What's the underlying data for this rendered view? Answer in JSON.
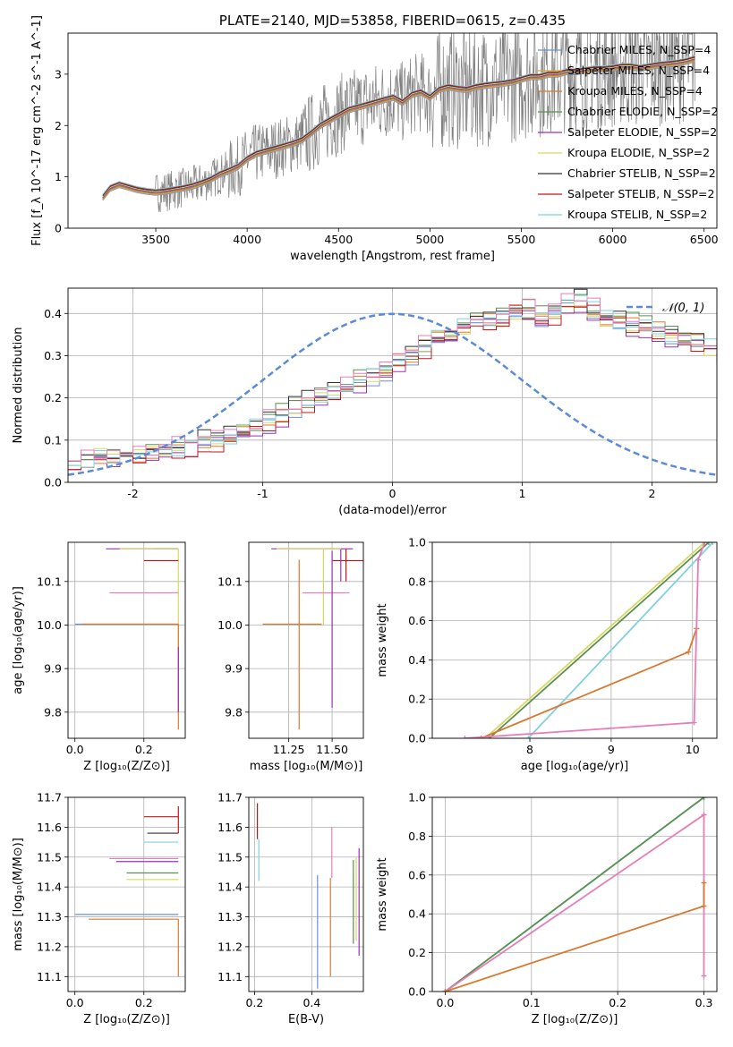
{
  "chart_data": [
    {
      "type": "line",
      "title": "PLATE=2140, MJD=53858, FIBERID=0615, z=0.435",
      "xlabel": "wavelength [Angstrom, rest frame]",
      "ylabel": "Flux [f_λ 10^-17 erg cm^-2 s^-1 A^-1]",
      "xlim": [
        3020,
        6570
      ],
      "ylim": [
        0,
        3.8
      ],
      "xticks": [
        3500,
        4000,
        4500,
        5000,
        5500,
        6000,
        6500
      ],
      "yticks": [
        0,
        1,
        2,
        3
      ],
      "grid": false,
      "legend_position": "top-right",
      "series": [
        {
          "name": "Chabrier MILES, N_SSP=4",
          "color": "#6a8fd8"
        },
        {
          "name": "Salpeter MILES, N_SSP=4",
          "color": "#e8a033"
        },
        {
          "name": "Kroupa MILES, N_SSP=4",
          "color": "#d9782f"
        },
        {
          "name": "Chabrier ELODIE, N_SSP=2",
          "color": "#5a9050"
        },
        {
          "name": "Salpeter ELODIE, N_SSP=2",
          "color": "#9b30b8"
        },
        {
          "name": "Kroupa ELODIE, N_SSP=2",
          "color": "#d8d860"
        },
        {
          "name": "Chabrier STELIB, N_SSP=2",
          "color": "#303030"
        },
        {
          "name": "Salpeter STELIB, N_SSP=2",
          "color": "#c01818"
        },
        {
          "name": "Kroupa STELIB, N_SSP=2",
          "color": "#80d0e0"
        }
      ],
      "data_color": "#808080",
      "model_x": [
        3210,
        3250,
        3300,
        3350,
        3400,
        3450,
        3500,
        3550,
        3600,
        3650,
        3700,
        3750,
        3800,
        3850,
        3900,
        3950,
        4000,
        4050,
        4100,
        4150,
        4200,
        4250,
        4300,
        4350,
        4400,
        4450,
        4500,
        4550,
        4600,
        4650,
        4700,
        4750,
        4800,
        4850,
        4900,
        4950,
        5000,
        5050,
        5100,
        5150,
        5200,
        5250,
        5300,
        5350,
        5400,
        5450,
        5500,
        5550,
        5600,
        5650,
        5700,
        5750,
        5800,
        5850,
        5900,
        5950,
        6000,
        6050,
        6100,
        6150,
        6200,
        6250,
        6300,
        6350,
        6400,
        6450
      ],
      "model_y": [
        0.6,
        0.78,
        0.85,
        0.8,
        0.75,
        0.72,
        0.7,
        0.72,
        0.75,
        0.78,
        0.82,
        0.88,
        0.95,
        1.05,
        1.12,
        1.2,
        1.35,
        1.45,
        1.5,
        1.55,
        1.6,
        1.65,
        1.72,
        1.85,
        2.0,
        2.1,
        2.2,
        2.3,
        2.35,
        2.4,
        2.45,
        2.5,
        2.55,
        2.45,
        2.6,
        2.65,
        2.55,
        2.7,
        2.75,
        2.72,
        2.7,
        2.75,
        2.78,
        2.8,
        2.82,
        2.85,
        2.9,
        2.95,
        2.95,
        3.0,
        3.0,
        3.05,
        3.05,
        3.08,
        3.1,
        3.1,
        3.12,
        3.15,
        3.15,
        3.12,
        3.15,
        3.18,
        3.2,
        3.22,
        3.25,
        3.3
      ]
    },
    {
      "type": "line",
      "xlabel": "(data-model)/error",
      "ylabel": "Normed distribution",
      "xlim": [
        -2.5,
        2.5
      ],
      "ylim": [
        0,
        0.46
      ],
      "xticks": [
        -2,
        -1,
        0,
        1,
        2
      ],
      "yticks": [
        0.0,
        0.1,
        0.2,
        0.3,
        0.4
      ],
      "grid": true,
      "legend_position": "top-right",
      "gaussian": {
        "name": "𝒩(0, 1)",
        "color": "#5b8bd8",
        "mean": 0,
        "sigma": 1
      },
      "histogram": {
        "bin_width": 0.1,
        "bin_start": -2.5,
        "values": [
          0.06,
          0.055,
          0.06,
          0.05,
          0.06,
          0.065,
          0.07,
          0.075,
          0.08,
          0.085,
          0.095,
          0.1,
          0.11,
          0.12,
          0.13,
          0.145,
          0.16,
          0.18,
          0.19,
          0.2,
          0.21,
          0.225,
          0.24,
          0.255,
          0.27,
          0.285,
          0.3,
          0.32,
          0.345,
          0.36,
          0.37,
          0.38,
          0.385,
          0.39,
          0.4,
          0.405,
          0.39,
          0.4,
          0.42,
          0.43,
          0.41,
          0.39,
          0.38,
          0.375,
          0.37,
          0.36,
          0.35,
          0.34,
          0.33,
          0.32,
          0.31,
          0.3,
          0.295,
          0.285,
          0.27,
          0.26,
          0.25,
          0.24,
          0.23,
          0.22,
          0.2,
          0.18,
          0.165,
          0.15,
          0.14,
          0.13,
          0.12,
          0.11,
          0.1,
          0.09,
          0.085,
          0.08,
          0.07,
          0.065,
          0.06,
          0.06,
          0.055,
          0.05,
          0.055,
          0.05
        ]
      }
    },
    {
      "type": "scatter",
      "xlabel": "Z [log₁₀(Z/Z⊙)]",
      "ylabel": "age  [log₁₀(age/yr)]",
      "xlim": [
        -0.02,
        0.32
      ],
      "ylim": [
        9.74,
        10.19
      ],
      "xticks": [
        0.0,
        0.2
      ],
      "yticks": [
        9.8,
        9.9,
        10.0,
        10.1
      ],
      "grid": true,
      "points": [
        {
          "x": 0.3,
          "x_lo": 0.23,
          "y": 10.175,
          "y_lo": 10.175,
          "y_hi": 10.175,
          "color": "#5a9050"
        },
        {
          "x": 0.3,
          "x_lo": 0.09,
          "y": 10.175,
          "y_lo": 10.175,
          "y_hi": 10.175,
          "color": "#9b30b8"
        },
        {
          "x": 0.3,
          "x_lo": 0.13,
          "y": 10.175,
          "y_lo": 9.95,
          "y_hi": 10.175,
          "color": "#d8d860"
        },
        {
          "x": 0.3,
          "x_lo": 0.2,
          "y": 10.148,
          "y_lo": 10.148,
          "y_hi": 10.148,
          "color": "#c01818"
        },
        {
          "x": 0.3,
          "x_lo": 0.1,
          "y": 10.074,
          "y_lo": 10.074,
          "y_hi": 10.074,
          "color": "#e87bb8"
        },
        {
          "x": 0.3,
          "x_lo": 0.0,
          "y": 10.002,
          "y_lo": 10.002,
          "y_hi": 10.002,
          "color": "#6a8fd8"
        },
        {
          "x": 0.3,
          "x_lo": 0.02,
          "y": 10.002,
          "y_lo": 9.76,
          "y_hi": 10.002,
          "color": "#d9782f"
        },
        {
          "x": 0.3,
          "x_lo": 0.3,
          "y": 9.95,
          "y_lo": 9.8,
          "y_hi": 9.95,
          "color": "#9b30b8"
        }
      ]
    },
    {
      "type": "scatter",
      "xlabel": "mass [log₁₀(M/M⊙)]",
      "ylabel": "",
      "xlim": [
        11.02,
        11.68
      ],
      "ylim": [
        9.74,
        10.19
      ],
      "xticks": [
        11.25,
        11.5
      ],
      "yticks": [
        9.8,
        9.9,
        10.0,
        10.1
      ],
      "grid": true,
      "points": [
        {
          "x": 11.55,
          "x_lo": 11.15,
          "x_hi": 11.62,
          "y": 10.175,
          "y_lo": 10.1,
          "y_hi": 10.175,
          "color": "#9b30b8"
        },
        {
          "x": 11.45,
          "x_lo": 11.18,
          "x_hi": 11.55,
          "y": 10.175,
          "y_lo": 10.0,
          "y_hi": 10.175,
          "color": "#d8d860"
        },
        {
          "x": 11.58,
          "x_lo": 11.5,
          "x_hi": 11.68,
          "y": 10.148,
          "y_lo": 10.1,
          "y_hi": 10.175,
          "color": "#c01818"
        },
        {
          "x": 11.48,
          "x_lo": 11.33,
          "x_hi": 11.6,
          "y": 10.074,
          "y_lo": 10.074,
          "y_hi": 10.074,
          "color": "#e87bb8"
        },
        {
          "x": 11.31,
          "x_lo": 11.1,
          "x_hi": 11.44,
          "y": 10.002,
          "y_lo": 9.76,
          "y_hi": 10.15,
          "color": "#d9782f"
        },
        {
          "x": 11.5,
          "x_lo": 11.5,
          "x_hi": 11.5,
          "y": 10.17,
          "y_lo": 9.81,
          "y_hi": 10.17,
          "color": "#9b30b8"
        }
      ]
    },
    {
      "type": "line",
      "xlabel": "age  [log₁₀(age/yr)]",
      "ylabel": "mass weight",
      "xlim": [
        6.8,
        10.3
      ],
      "ylim": [
        0,
        1
      ],
      "xticks": [
        8,
        9,
        10
      ],
      "yticks": [
        0.0,
        0.2,
        0.4,
        0.6,
        0.8,
        1.0
      ],
      "grid": true,
      "series": [
        {
          "x": [
            7.45,
            10.15
          ],
          "y": [
            0.0,
            1.0
          ],
          "color": "#d8d860"
        },
        {
          "x": [
            7.5,
            10.2
          ],
          "y": [
            0.0,
            1.0
          ],
          "color": "#5a9050"
        },
        {
          "x": [
            7.98,
            10.25
          ],
          "y": [
            0.0,
            1.0
          ],
          "color": "#80d0e0"
        },
        {
          "x": [
            7.4,
            9.95,
            10.05
          ],
          "y": [
            0.0,
            0.44,
            0.56
          ],
          "color": "#d9782f"
        },
        {
          "x": [
            7.2,
            10.02,
            10.07,
            10.15
          ],
          "y": [
            0.0,
            0.08,
            0.91,
            1.0
          ],
          "color": "#e87bb8"
        }
      ]
    },
    {
      "type": "scatter",
      "xlabel": "Z [log₁₀(Z/Z⊙)]",
      "ylabel": "mass [log₁₀(M/M⊙)]",
      "xlim": [
        -0.02,
        0.32
      ],
      "ylim": [
        11.05,
        11.7
      ],
      "xticks": [
        0.0,
        0.2
      ],
      "yticks": [
        11.1,
        11.2,
        11.3,
        11.4,
        11.5,
        11.6,
        11.7
      ],
      "grid": true,
      "points": [
        {
          "x": 0.3,
          "x_lo": 0.2,
          "y": 11.635,
          "y_lo": 11.58,
          "y_hi": 11.67,
          "color": "#c01818"
        },
        {
          "x": 0.3,
          "x_lo": 0.21,
          "y": 11.58,
          "y_lo": 11.58,
          "y_hi": 11.58,
          "color": "#303030"
        },
        {
          "x": 0.3,
          "x_lo": 0.2,
          "y": 11.55,
          "y_lo": 11.55,
          "y_hi": 11.55,
          "color": "#80d0e0"
        },
        {
          "x": 0.3,
          "x_lo": 0.1,
          "y": 11.495,
          "y_lo": 11.495,
          "y_hi": 11.495,
          "color": "#e87bb8"
        },
        {
          "x": 0.3,
          "x_lo": 0.12,
          "y": 11.485,
          "y_lo": 11.485,
          "y_hi": 11.485,
          "color": "#9b30b8"
        },
        {
          "x": 0.3,
          "x_lo": 0.15,
          "y": 11.447,
          "y_lo": 11.447,
          "y_hi": 11.447,
          "color": "#5a9050"
        },
        {
          "x": 0.3,
          "x_lo": 0.15,
          "y": 11.425,
          "y_lo": 11.425,
          "y_hi": 11.425,
          "color": "#d8d860"
        },
        {
          "x": 0.3,
          "x_lo": 0.0,
          "y": 11.308,
          "y_lo": 11.308,
          "y_hi": 11.308,
          "color": "#6a8fd8"
        },
        {
          "x": 0.3,
          "x_lo": 0.04,
          "y": 11.292,
          "y_lo": 11.1,
          "y_hi": 11.292,
          "color": "#d9782f"
        }
      ]
    },
    {
      "type": "scatter",
      "xlabel": "E(B-V)",
      "ylabel": "",
      "xlim": [
        0.18,
        0.58
      ],
      "ylim": [
        11.05,
        11.7
      ],
      "xticks": [
        0.2,
        0.4
      ],
      "yticks": [
        11.1,
        11.2,
        11.3,
        11.4,
        11.5,
        11.6,
        11.7
      ],
      "grid": true,
      "points": [
        {
          "x": 0.21,
          "y_lo": 11.56,
          "y_hi": 11.68,
          "color": "#c01818"
        },
        {
          "x": 0.215,
          "y_lo": 11.42,
          "y_hi": 11.56,
          "color": "#80d0e0"
        },
        {
          "x": 0.42,
          "y_lo": 11.06,
          "y_hi": 11.44,
          "color": "#6a8fd8"
        },
        {
          "x": 0.465,
          "y_lo": 11.1,
          "y_hi": 11.43,
          "color": "#d9782f"
        },
        {
          "x": 0.47,
          "y_lo": 11.43,
          "y_hi": 11.6,
          "color": "#e87bb8"
        },
        {
          "x": 0.545,
          "y_lo": 11.21,
          "y_hi": 11.49,
          "color": "#5a9050"
        },
        {
          "x": 0.555,
          "y_lo": 11.22,
          "y_hi": 11.5,
          "color": "#d8d860"
        },
        {
          "x": 0.565,
          "y_lo": 11.17,
          "y_hi": 11.53,
          "color": "#9b30b8"
        }
      ]
    },
    {
      "type": "line",
      "xlabel": "Z [log₁₀(Z/Z⊙)]",
      "ylabel": "mass weight",
      "xlim": [
        -0.015,
        0.315
      ],
      "ylim": [
        0,
        1
      ],
      "xticks": [
        0.0,
        0.1,
        0.2,
        0.3
      ],
      "yticks": [
        0.0,
        0.2,
        0.4,
        0.6,
        0.8,
        1.0
      ],
      "grid": true,
      "series": [
        {
          "x": [
            0.0,
            0.3
          ],
          "y": [
            0.0,
            1.0
          ],
          "color": "#80d0e0"
        },
        {
          "x": [
            0.0,
            0.3
          ],
          "y": [
            0.0,
            1.0
          ],
          "color": "#5a9050"
        },
        {
          "x": [
            0.0,
            0.3,
            0.3,
            0.3
          ],
          "y": [
            0.0,
            0.91,
            0.08,
            0.91
          ],
          "color": "#e87bb8"
        },
        {
          "x": [
            0.0,
            0.3,
            0.3
          ],
          "y": [
            0.0,
            0.44,
            0.56
          ],
          "color": "#d9782f"
        }
      ]
    }
  ]
}
